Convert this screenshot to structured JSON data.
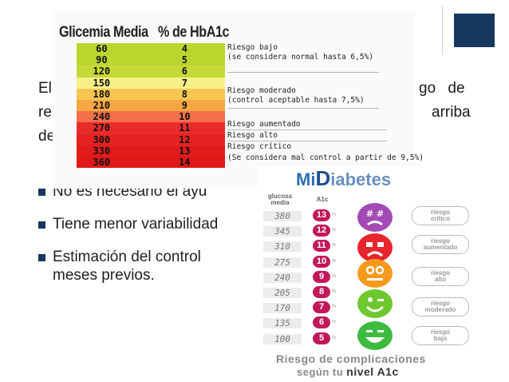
{
  "slide": {
    "bg_line1_left": "El",
    "bg_line1_right": "go de",
    "bg_line2_left": "re",
    "bg_line2_right": "arriba",
    "bg_line3_left": "de",
    "bullets": [
      "No es necesario el ayu",
      "Tiene menor variabilidad",
      "Estimación del control",
      "meses previos."
    ],
    "accent_color": "#17375e"
  },
  "table": {
    "col1_title": "Glicemia Media",
    "col2_title": "% de HbA1c",
    "rows": [
      {
        "glicemia": "60",
        "hba1c": "4",
        "color": "#bcd630"
      },
      {
        "glicemia": "90",
        "hba1c": "5",
        "color": "#bcd630"
      },
      {
        "glicemia": "120",
        "hba1c": "6",
        "color": "#c5da3a"
      },
      {
        "glicemia": "150",
        "hba1c": "7",
        "color": "#f7f08a"
      },
      {
        "glicemia": "180",
        "hba1c": "8",
        "color": "#f6c653"
      },
      {
        "glicemia": "210",
        "hba1c": "9",
        "color": "#f4a742"
      },
      {
        "glicemia": "240",
        "hba1c": "10",
        "color": "#f26f4a"
      },
      {
        "glicemia": "270",
        "hba1c": "11",
        "color": "#e82b2b"
      },
      {
        "glicemia": "300",
        "hba1c": "12",
        "color": "#e52222"
      },
      {
        "glicemia": "330",
        "hba1c": "13",
        "color": "#e11c1c"
      },
      {
        "glicemia": "360",
        "hba1c": "14",
        "color": "#e01818"
      }
    ],
    "risk_labels": {
      "bajo_1": "Riesgo bajo",
      "bajo_2": "(se considera normal hasta 6,5%)",
      "moderado_1": "Riesgo moderado",
      "moderado_2": "(control aceptable hasta 7,5%)",
      "aumentado": "Riesgo aumentado",
      "alto": "Riesgo alto",
      "critico": "Riesgo crítico",
      "mal_control": "(Se considera mal control a partir de 9,5%)"
    }
  },
  "midiabetes": {
    "logo_mi": "Mi",
    "logo_d": "D",
    "logo_rest": "iabetes",
    "head_glucosa_1": "glucosa",
    "head_glucosa_2": "media",
    "head_a1c": "A1c",
    "pct": "%",
    "rows": [
      {
        "glucosa": "380",
        "a1c": "13"
      },
      {
        "glucosa": "345",
        "a1c": "12"
      },
      {
        "glucosa": "310",
        "a1c": "11"
      },
      {
        "glucosa": "275",
        "a1c": "10"
      },
      {
        "glucosa": "240",
        "a1c": "9"
      },
      {
        "glucosa": "205",
        "a1c": "8"
      },
      {
        "glucosa": "170",
        "a1c": "7"
      },
      {
        "glucosa": "135",
        "a1c": "6"
      },
      {
        "glucosa": "100",
        "a1c": "5"
      }
    ],
    "bubbles": [
      {
        "l1": "riesgo",
        "l2": "crítico"
      },
      {
        "l1": "riesgo",
        "l2": "aumentado"
      },
      {
        "l1": "riesgo",
        "l2": "alto"
      },
      {
        "l1": "riesgo",
        "l2": "moderado"
      },
      {
        "l1": "riesgo",
        "l2": "bajo"
      }
    ],
    "footer_1": "Riesgo de complicaciones",
    "footer_2_prefix": "según tu",
    "footer_2_strong": "nivel A1c"
  }
}
